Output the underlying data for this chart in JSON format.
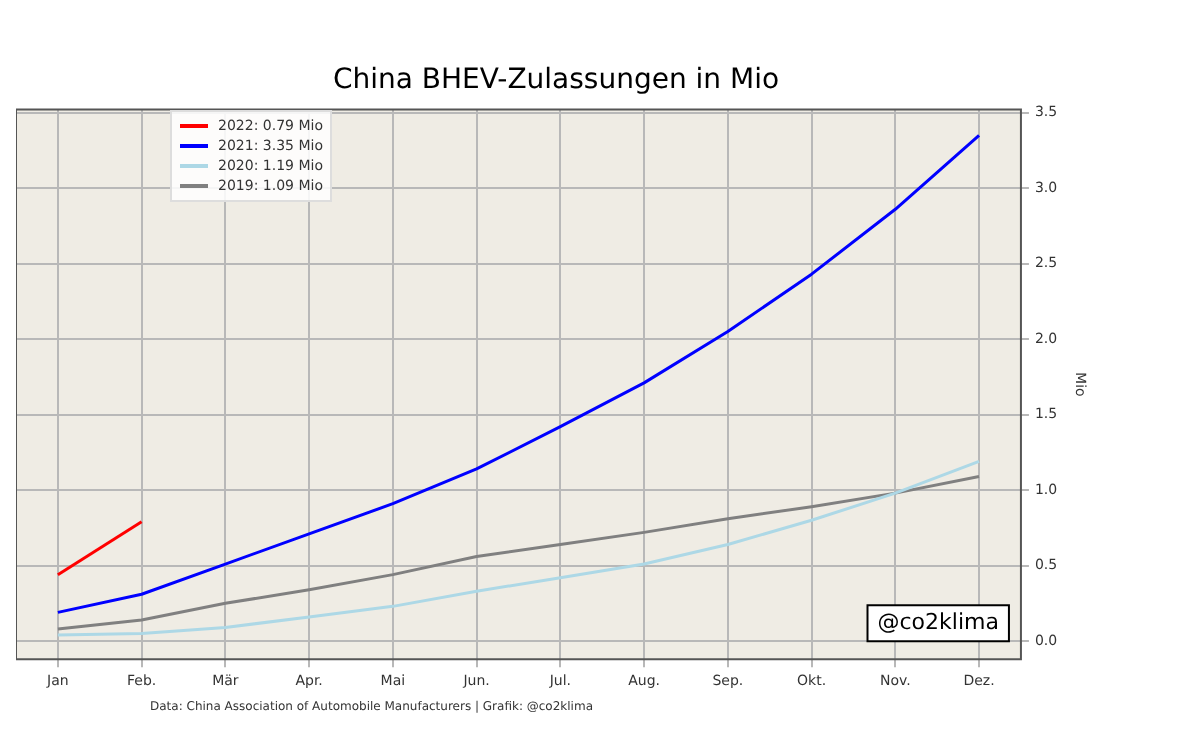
{
  "chart_data": {
    "type": "line",
    "title": "China BHEV-Zulassungen in Mio",
    "ylabel": "Mio",
    "categories": [
      "Jan",
      "Feb.",
      "Mär",
      "Apr.",
      "Mai",
      "Jun.",
      "Jul.",
      "Aug.",
      "Sep.",
      "Okt.",
      "Nov.",
      "Dez."
    ],
    "series": [
      {
        "name": "2022: 0.79 Mio",
        "color": "#ff0000",
        "values": [
          0.44,
          0.79,
          null,
          null,
          null,
          null,
          null,
          null,
          null,
          null,
          null,
          null
        ]
      },
      {
        "name": "2021: 3.35 Mio",
        "color": "#0000ff",
        "values": [
          0.19,
          0.31,
          0.51,
          0.71,
          0.91,
          1.14,
          1.42,
          1.71,
          2.05,
          2.43,
          2.86,
          3.35
        ]
      },
      {
        "name": "2020: 1.19 Mio",
        "color": "#add8e6",
        "values": [
          0.04,
          0.05,
          0.09,
          0.16,
          0.23,
          0.33,
          0.42,
          0.51,
          0.64,
          0.8,
          0.98,
          1.19
        ]
      },
      {
        "name": "2019: 1.09 Mio",
        "color": "#808080",
        "values": [
          0.08,
          0.14,
          0.25,
          0.34,
          0.44,
          0.56,
          0.64,
          0.72,
          0.81,
          0.89,
          0.98,
          1.09
        ]
      }
    ],
    "ylim": [
      -0.12,
      3.52
    ],
    "yticks": [
      {
        "value": 0,
        "label": "0.0"
      },
      {
        "value": 0.5,
        "label": "0.5"
      },
      {
        "value": 1,
        "label": "1.0"
      },
      {
        "value": 1.5,
        "label": "1.5"
      },
      {
        "value": 2,
        "label": "2.0"
      },
      {
        "value": 2.5,
        "label": "2.5"
      },
      {
        "value": 3,
        "label": "3.0"
      },
      {
        "value": 3.5,
        "label": "3.5"
      }
    ],
    "grid": true,
    "legend": "top left",
    "marker": "none",
    "line_style": "solid",
    "annotations": [
      "@co2klima",
      "Data: China Association of Automobile Manufacturers | Grafik: @co2klima"
    ]
  }
}
